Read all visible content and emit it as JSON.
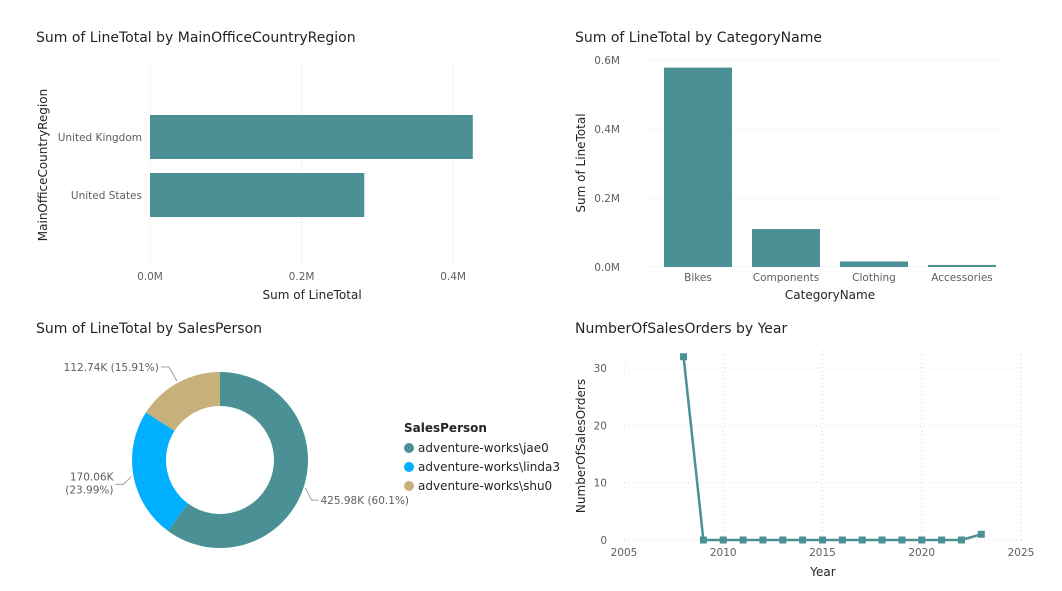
{
  "chart_data": [
    {
      "type": "bar",
      "orientation": "horizontal",
      "title": "Sum of LineTotal by MainOfficeCountryRegion",
      "xlabel": "Sum of LineTotal",
      "ylabel": "MainOfficeCountryRegion",
      "categories": [
        "United Kingdom",
        "United States"
      ],
      "values": [
        425980,
        282800
      ],
      "xlim": [
        0,
        450000
      ],
      "xticks": [
        "0.0M",
        "0.2M",
        "0.4M"
      ],
      "xtick_values": [
        0,
        200000,
        400000
      ],
      "grid": true,
      "color": "#4a9094"
    },
    {
      "type": "bar",
      "title": "Sum of LineTotal by CategoryName",
      "xlabel": "CategoryName",
      "ylabel": "Sum of LineTotal",
      "categories": [
        "Bikes",
        "Components",
        "Clothing",
        "Accessories"
      ],
      "values": [
        578000,
        110000,
        16000,
        6000
      ],
      "ylim": [
        0,
        600000
      ],
      "yticks": [
        "0.0M",
        "0.2M",
        "0.4M",
        "0.6M"
      ],
      "ytick_values": [
        0,
        200000,
        400000,
        600000
      ],
      "grid": true,
      "color": "#4a9094"
    },
    {
      "type": "pie",
      "donut": true,
      "title": "Sum of LineTotal by SalesPerson",
      "legend_title": "SalesPerson",
      "legend_position": "right",
      "slices": [
        {
          "name": "adventure-works\\jae0",
          "value": 425.98,
          "label": "425.98K (60.1%)",
          "color": "#4a9094"
        },
        {
          "name": "adventure-works\\linda3",
          "value": 170.06,
          "label": "170.06K",
          "label2": "(23.99%)",
          "color": "#00b0ff"
        },
        {
          "name": "adventure-works\\shu0",
          "value": 112.74,
          "label": "112.74K (15.91%)",
          "color": "#c8b07b"
        }
      ]
    },
    {
      "type": "line",
      "title": "NumberOfSalesOrders by Year",
      "xlabel": "Year",
      "ylabel": "NumberOfSalesOrders",
      "x": [
        2008,
        2009,
        2010,
        2011,
        2012,
        2013,
        2014,
        2015,
        2016,
        2017,
        2018,
        2019,
        2020,
        2021,
        2022,
        2023
      ],
      "y": [
        32,
        0,
        0,
        0,
        0,
        0,
        0,
        0,
        0,
        0,
        0,
        0,
        0,
        0,
        0,
        1
      ],
      "xlim": [
        2005,
        2025
      ],
      "ylim": [
        0,
        33
      ],
      "xticks": [
        2005,
        2010,
        2015,
        2020,
        2025
      ],
      "yticks": [
        0,
        10,
        20,
        30
      ],
      "grid": true,
      "color": "#4a9094"
    }
  ]
}
